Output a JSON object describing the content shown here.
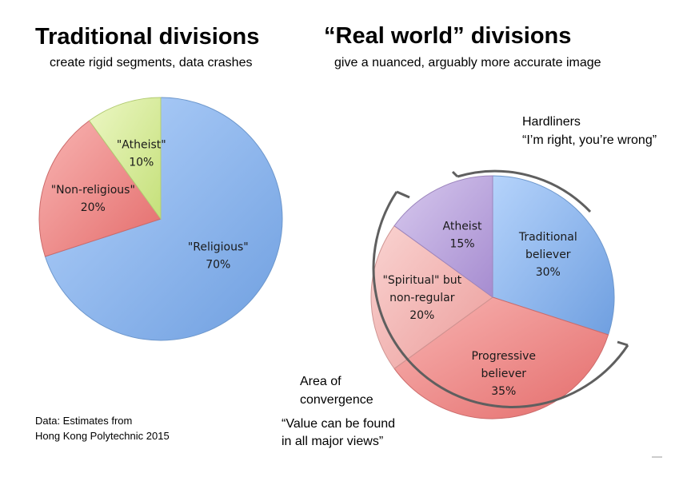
{
  "left": {
    "title": "Traditional divisions",
    "subtitle": "create rigid segments, data crashes"
  },
  "right": {
    "title": "“Real world” divisions",
    "subtitle": "give a nuanced, arguably more accurate image"
  },
  "annotations": {
    "hardliners_label": "Hardliners",
    "hardliners_quote": "“I’m right, you’re wrong”",
    "convergence_line1": "Area of",
    "convergence_line2": "convergence",
    "convergence_quote_line1": "“Value can be found",
    "convergence_quote_line2": "in all major views”"
  },
  "source": {
    "line1": "Data: Estimates from",
    "line2": "Hong Kong Polytechnic 2015"
  },
  "colors": {
    "blue": "#8fb9ee",
    "red": "#ef8f8f",
    "green": "#d8ec9c",
    "purple": "#bfa7de",
    "pink": "#f3b6b4",
    "arc": "#5f5f5f"
  },
  "chart_data": [
    {
      "type": "pie",
      "title": "Traditional divisions",
      "slices": [
        {
          "label": "\"Religious\"",
          "value": 70,
          "value_label": "70%",
          "color": "#8fb9ee"
        },
        {
          "label": "\"Non-religious\"",
          "value": 20,
          "value_label": "20%",
          "color": "#ef8f8f"
        },
        {
          "label": "\"Atheist\"",
          "value": 10,
          "value_label": "10%",
          "color": "#d8ec9c"
        }
      ]
    },
    {
      "type": "pie",
      "title": "“Real world” divisions",
      "slices": [
        {
          "label": "Traditional believer",
          "value": 30,
          "value_label": "30%",
          "color": "#8fb9ee"
        },
        {
          "label": "Progressive believer",
          "value": 35,
          "value_label": "35%",
          "color": "#ef8f8f"
        },
        {
          "label": "\"Spiritual\" but non-regular",
          "value": 20,
          "value_label": "20%",
          "color": "#f3b6b4"
        },
        {
          "label": "Atheist",
          "value": 15,
          "value_label": "15%",
          "color": "#bfa7de"
        }
      ]
    }
  ]
}
